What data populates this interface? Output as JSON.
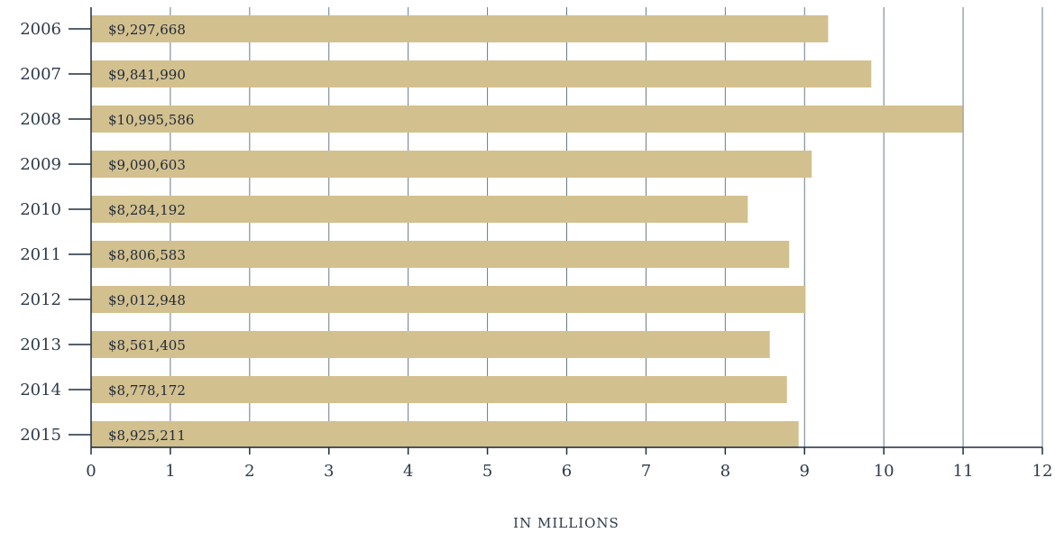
{
  "chart_data": {
    "type": "bar",
    "orientation": "horizontal",
    "categories": [
      "2006",
      "2007",
      "2008",
      "2009",
      "2010",
      "2011",
      "2012",
      "2013",
      "2014",
      "2015"
    ],
    "values": [
      9297668,
      9841990,
      10995586,
      9090603,
      8284192,
      8806583,
      9012948,
      8561405,
      8778172,
      8925211
    ],
    "value_labels": [
      "$9,297,668",
      "$9,841,990",
      "$10,995,586",
      "$9,090,603",
      "$8,284,192",
      "$8,806,583",
      "$9,012,948",
      "$8,561,405",
      "$8,778,172",
      "$8,925,211"
    ],
    "xlabel": "IN MILLIONS",
    "xlim": [
      0,
      12
    ],
    "x_ticks": [
      "0",
      "1",
      "2",
      "3",
      "4",
      "5",
      "6",
      "7",
      "8",
      "9",
      "10",
      "11",
      "12"
    ],
    "x_tick_unit": 1000000,
    "grid": true,
    "colors": {
      "bar": "#d3c08f",
      "grid": "#6b7a86",
      "axis": "#1f2f40"
    }
  }
}
